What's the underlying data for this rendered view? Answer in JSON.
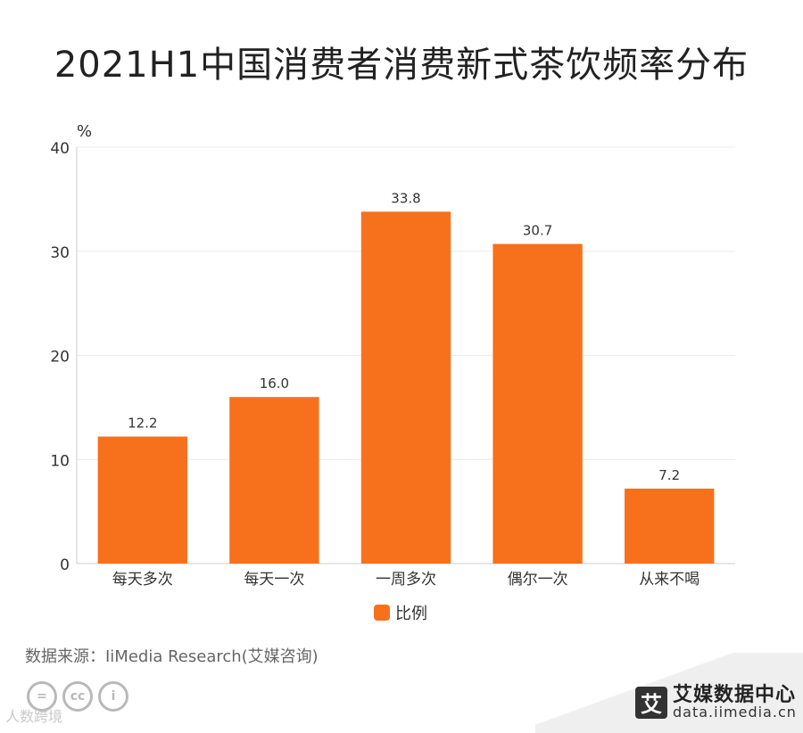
{
  "chart_data": {
    "type": "bar",
    "title": "2021H1中国消费者消费新式茶饮频率分布",
    "ylabel": "%",
    "xlabel": "",
    "categories": [
      "每天多次",
      "每天一次",
      "一周多次",
      "偶尔一次",
      "从来不喝"
    ],
    "series": [
      {
        "name": "比例",
        "values": [
          12.2,
          16.0,
          33.8,
          30.7,
          7.2
        ]
      }
    ],
    "value_labels": [
      "12.2",
      "16.0",
      "33.8",
      "30.7",
      "7.2"
    ],
    "ylim": [
      0,
      40
    ],
    "yticks": [
      "0",
      "10",
      "20",
      "30",
      "40"
    ],
    "grid": true,
    "legend": "bottom",
    "bar_color": "#f7711c",
    "grid_color": "#ececec",
    "axis_color": "#cccccc"
  },
  "footer": {
    "source": "数据来源：IiMedia Research(艾媒咨询)",
    "watermark": "人数跨境",
    "cc_icons": [
      "equals-icon",
      "cc-icon",
      "person-icon"
    ],
    "cc_labels": [
      "=",
      "cc",
      "i"
    ]
  },
  "brand": {
    "logo_char": "艾",
    "name": "艾媒数据中心",
    "url": "data.iimedia.cn"
  }
}
